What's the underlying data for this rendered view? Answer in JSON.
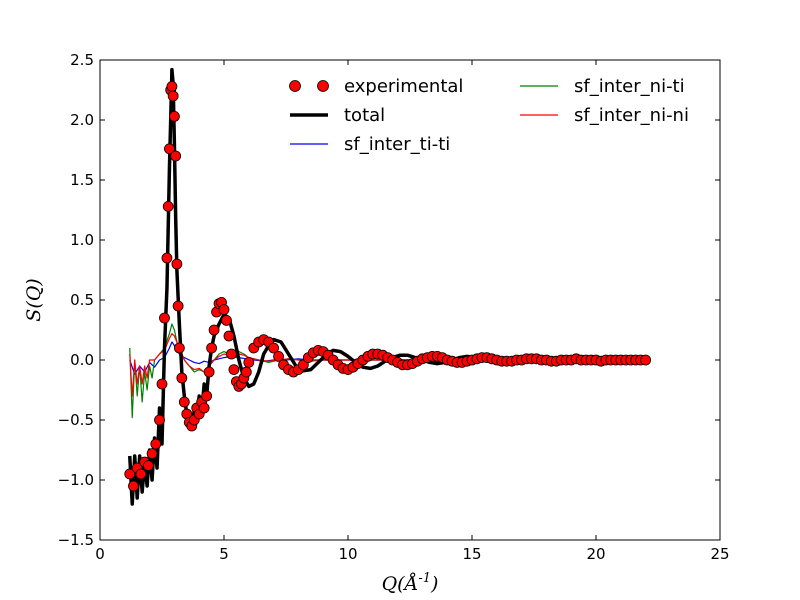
{
  "chart_data": {
    "type": "line",
    "title": "",
    "xlabel": "Q(Å^{-1})",
    "ylabel": "S(Q)",
    "xlim": [
      0,
      25
    ],
    "ylim": [
      -1.5,
      2.5
    ],
    "x_ticks": [
      0,
      5,
      10,
      15,
      20,
      25
    ],
    "x_tick_labels": [
      "0",
      "5",
      "10",
      "15",
      "20",
      "25"
    ],
    "y_ticks": [
      -1.5,
      -1.0,
      -0.5,
      0.0,
      0.5,
      1.0,
      1.5,
      2.0,
      2.5
    ],
    "y_tick_labels": [
      "−1.5",
      "−1.0",
      "−0.5",
      "0.0",
      "0.5",
      "1.0",
      "1.5",
      "2.0",
      "2.5"
    ],
    "grid": false,
    "legend": {
      "placement": "top-right",
      "columns": 2,
      "entries": [
        "experimental",
        "total",
        "sf_inter_ti-ti",
        "sf_inter_ni-ti",
        "sf_inter_ni-ni"
      ]
    },
    "series": [
      {
        "name": "experimental",
        "style": "markers",
        "color": "#ff0000",
        "edge_color": "#000000",
        "x": [
          1.2,
          1.35,
          1.5,
          1.65,
          1.8,
          1.95,
          2.1,
          2.25,
          2.4,
          2.5,
          2.6,
          2.7,
          2.75,
          2.8,
          2.85,
          2.9,
          2.95,
          3.0,
          3.05,
          3.1,
          3.15,
          3.2,
          3.3,
          3.4,
          3.5,
          3.6,
          3.7,
          3.8,
          3.9,
          4.0,
          4.1,
          4.2,
          4.3,
          4.4,
          4.5,
          4.6,
          4.7,
          4.8,
          4.9,
          5.0,
          5.1,
          5.2,
          5.3,
          5.4,
          5.5,
          5.6,
          5.7,
          5.8,
          5.9,
          6.0,
          6.2,
          6.4,
          6.6,
          6.8,
          7.0,
          7.2,
          7.4,
          7.6,
          7.8,
          8.0,
          8.2,
          8.4,
          8.6,
          8.8,
          9.0,
          9.2,
          9.4,
          9.6,
          9.8,
          10.0,
          10.2,
          10.4,
          10.6,
          10.8,
          11.0,
          11.2,
          11.4,
          11.6,
          11.8,
          12.0,
          12.2,
          12.4,
          12.6,
          12.8,
          13.0,
          13.2,
          13.4,
          13.6,
          13.8,
          14.0,
          14.2,
          14.4,
          14.6,
          14.8,
          15.0,
          15.2,
          15.4,
          15.6,
          15.8,
          16.0,
          16.2,
          16.4,
          16.6,
          16.8,
          17.0,
          17.2,
          17.4,
          17.6,
          17.8,
          18.0,
          18.2,
          18.4,
          18.6,
          18.8,
          19.0,
          19.2,
          19.4,
          19.6,
          19.8,
          20.0,
          20.2,
          20.4,
          20.6,
          20.8,
          21.0,
          21.2,
          21.4,
          21.6,
          21.8,
          22.0
        ],
        "y": [
          -0.95,
          -1.05,
          -0.9,
          -0.95,
          -0.85,
          -0.88,
          -0.78,
          -0.7,
          -0.5,
          -0.2,
          0.35,
          0.85,
          1.28,
          1.76,
          2.25,
          2.28,
          2.2,
          2.03,
          1.7,
          0.8,
          0.45,
          0.1,
          -0.15,
          -0.35,
          -0.45,
          -0.52,
          -0.55,
          -0.5,
          -0.4,
          -0.45,
          -0.35,
          -0.4,
          -0.3,
          -0.1,
          0.1,
          0.25,
          0.4,
          0.47,
          0.48,
          0.42,
          0.33,
          0.2,
          0.05,
          -0.08,
          -0.18,
          -0.22,
          -0.2,
          -0.15,
          -0.1,
          -0.02,
          0.1,
          0.15,
          0.17,
          0.15,
          0.1,
          0.03,
          -0.04,
          -0.08,
          -0.1,
          -0.08,
          -0.04,
          0.02,
          0.06,
          0.08,
          0.07,
          0.04,
          0.0,
          -0.04,
          -0.07,
          -0.08,
          -0.06,
          -0.03,
          0.0,
          0.03,
          0.05,
          0.05,
          0.04,
          0.02,
          0.0,
          -0.02,
          -0.04,
          -0.04,
          -0.03,
          -0.01,
          0.01,
          0.02,
          0.03,
          0.03,
          0.02,
          0.0,
          -0.01,
          -0.02,
          -0.02,
          -0.01,
          0.0,
          0.01,
          0.02,
          0.02,
          0.01,
          0.0,
          -0.01,
          -0.01,
          -0.01,
          0.0,
          0.0,
          0.01,
          0.01,
          0.01,
          0.0,
          0.0,
          -0.01,
          -0.01,
          0.0,
          0.0,
          0.0,
          0.01,
          0.0,
          0.0,
          0.0,
          0.0,
          -0.01,
          0.0,
          0.0,
          0.0,
          0.0,
          0.0,
          0.0,
          0.0,
          0.0,
          0.0
        ]
      },
      {
        "name": "total",
        "style": "line",
        "color": "#000000",
        "x": [
          1.2,
          1.3,
          1.4,
          1.5,
          1.6,
          1.7,
          1.8,
          1.9,
          2.0,
          2.1,
          2.2,
          2.3,
          2.4,
          2.5,
          2.6,
          2.7,
          2.8,
          2.85,
          2.9,
          2.95,
          3.0,
          3.05,
          3.1,
          3.2,
          3.3,
          3.4,
          3.5,
          3.6,
          3.7,
          3.8,
          3.9,
          4.0,
          4.1,
          4.2,
          4.3,
          4.4,
          4.5,
          4.6,
          4.8,
          5.0,
          5.2,
          5.4,
          5.6,
          5.8,
          6.0,
          6.2,
          6.4,
          6.6,
          6.8,
          7.0,
          7.3,
          7.6,
          7.9,
          8.2,
          8.5,
          8.8,
          9.1,
          9.4,
          9.7,
          10.0,
          10.3,
          10.6,
          10.9,
          11.2,
          11.5,
          11.8,
          12.1,
          12.4,
          12.7,
          13.0,
          13.3,
          13.6,
          13.9,
          14.2,
          14.5,
          14.8,
          15.1,
          15.4,
          15.7,
          16.0,
          16.3,
          16.6,
          16.9,
          17.2,
          17.5,
          17.8,
          18.1,
          18.4,
          18.7,
          19.0,
          19.3,
          19.6,
          19.9,
          20.2,
          20.5,
          20.8,
          21.1,
          21.4,
          21.7,
          22.0
        ],
        "y": [
          -0.8,
          -1.2,
          -0.8,
          -1.15,
          -0.8,
          -1.1,
          -0.85,
          -1.05,
          -0.75,
          -1.0,
          -0.65,
          -0.9,
          -0.4,
          -0.7,
          0.1,
          0.6,
          1.6,
          2.0,
          2.42,
          2.3,
          1.8,
          1.2,
          0.75,
          0.3,
          -0.1,
          -0.3,
          -0.45,
          -0.5,
          -0.55,
          -0.42,
          -0.5,
          -0.3,
          -0.45,
          -0.2,
          -0.3,
          -0.05,
          0.1,
          0.2,
          0.3,
          0.38,
          0.35,
          0.2,
          0.0,
          -0.15,
          -0.22,
          -0.2,
          -0.1,
          0.05,
          0.12,
          0.17,
          0.15,
          0.05,
          -0.05,
          -0.09,
          -0.08,
          -0.02,
          0.04,
          0.08,
          0.07,
          0.03,
          -0.02,
          -0.06,
          -0.07,
          -0.05,
          -0.01,
          0.02,
          0.04,
          0.04,
          0.02,
          0.0,
          -0.02,
          -0.03,
          -0.02,
          0.0,
          0.02,
          0.03,
          0.02,
          0.0,
          -0.01,
          -0.02,
          -0.01,
          0.0,
          0.01,
          0.02,
          0.01,
          0.0,
          -0.01,
          -0.01,
          0.0,
          0.01,
          0.01,
          0.0,
          0.0,
          -0.01,
          0.0,
          0.0,
          0.01,
          0.0,
          0.0,
          0.0
        ]
      },
      {
        "name": "sf_inter_ti-ti",
        "style": "line",
        "color": "#0000ff",
        "x": [
          1.2,
          1.4,
          1.6,
          1.8,
          2.0,
          2.2,
          2.4,
          2.6,
          2.8,
          2.9,
          3.0,
          3.2,
          3.4,
          3.6,
          3.8,
          4.0,
          4.2,
          4.4,
          4.6,
          4.8,
          5.0,
          5.3,
          5.6,
          5.9,
          6.2,
          6.6,
          7.0,
          7.5,
          8.0,
          8.5,
          9.0,
          10.0,
          11.0,
          12.0,
          13.0,
          14.0,
          15.0,
          16.0,
          17.0,
          18.0,
          19.0,
          20.0,
          21.0,
          22.0
        ],
        "y": [
          0.0,
          -0.12,
          -0.05,
          -0.1,
          -0.02,
          -0.06,
          0.0,
          0.02,
          0.1,
          0.15,
          0.12,
          0.05,
          0.02,
          0.0,
          -0.02,
          -0.03,
          -0.01,
          -0.02,
          0.0,
          0.01,
          0.02,
          0.03,
          0.02,
          0.01,
          0.0,
          -0.01,
          0.0,
          0.0,
          0.01,
          0.0,
          0.0,
          0.0,
          0.0,
          0.0,
          0.0,
          0.0,
          0.0,
          0.0,
          0.0,
          0.0,
          0.0,
          0.0,
          0.0,
          0.0
        ]
      },
      {
        "name": "sf_inter_ni-ti",
        "style": "line",
        "color": "#008000",
        "x": [
          1.2,
          1.3,
          1.4,
          1.5,
          1.6,
          1.7,
          1.8,
          1.9,
          2.0,
          2.1,
          2.2,
          2.4,
          2.6,
          2.8,
          2.9,
          3.0,
          3.1,
          3.2,
          3.4,
          3.6,
          3.8,
          4.0,
          4.2,
          4.4,
          4.6,
          4.8,
          5.0,
          5.2,
          5.4,
          5.6,
          5.8,
          6.0,
          6.4,
          6.8,
          7.2,
          7.6,
          8.0,
          8.5,
          9.0,
          10.0,
          11.0,
          12.0,
          13.0,
          14.0,
          15.0,
          16.0,
          17.0,
          18.0,
          19.0,
          20.0,
          21.0,
          22.0
        ],
        "y": [
          0.1,
          -0.48,
          0.0,
          -0.3,
          -0.05,
          -0.35,
          -0.1,
          -0.25,
          -0.05,
          -0.15,
          0.0,
          0.05,
          0.1,
          0.22,
          0.3,
          0.25,
          0.15,
          0.1,
          0.0,
          -0.05,
          -0.1,
          -0.08,
          -0.1,
          -0.05,
          0.0,
          0.05,
          0.07,
          0.05,
          0.06,
          0.07,
          0.05,
          0.02,
          0.0,
          -0.02,
          0.0,
          0.01,
          0.0,
          -0.01,
          0.0,
          0.0,
          0.0,
          0.0,
          0.0,
          0.0,
          0.0,
          0.0,
          0.0,
          0.0,
          0.0,
          0.0,
          0.0,
          0.0
        ]
      },
      {
        "name": "sf_inter_ni-ni",
        "style": "line",
        "color": "#ff0000",
        "x": [
          1.2,
          1.3,
          1.4,
          1.5,
          1.6,
          1.7,
          1.8,
          1.9,
          2.0,
          2.2,
          2.4,
          2.6,
          2.8,
          2.9,
          3.0,
          3.2,
          3.4,
          3.6,
          3.8,
          4.0,
          4.2,
          4.4,
          4.6,
          4.8,
          5.0,
          5.2,
          5.4,
          5.6,
          5.8,
          6.0,
          6.4,
          6.8,
          7.2,
          7.6,
          8.0,
          8.5,
          9.0,
          10.0,
          11.0,
          12.0,
          13.0,
          14.0,
          15.0,
          16.0,
          17.0,
          18.0,
          19.0,
          20.0,
          21.0,
          22.0
        ],
        "y": [
          0.05,
          -0.3,
          0.0,
          -0.2,
          -0.05,
          -0.2,
          -0.05,
          -0.15,
          0.0,
          0.0,
          0.05,
          0.08,
          0.18,
          0.22,
          0.2,
          0.1,
          0.0,
          -0.05,
          -0.08,
          -0.07,
          -0.1,
          -0.05,
          0.0,
          0.03,
          0.05,
          0.04,
          0.05,
          0.05,
          0.04,
          0.02,
          0.0,
          -0.01,
          0.0,
          0.01,
          0.0,
          0.0,
          0.0,
          0.0,
          0.0,
          0.0,
          0.0,
          0.0,
          0.0,
          0.0,
          0.0,
          0.0,
          0.0,
          0.0,
          0.0,
          0.0
        ]
      }
    ]
  }
}
